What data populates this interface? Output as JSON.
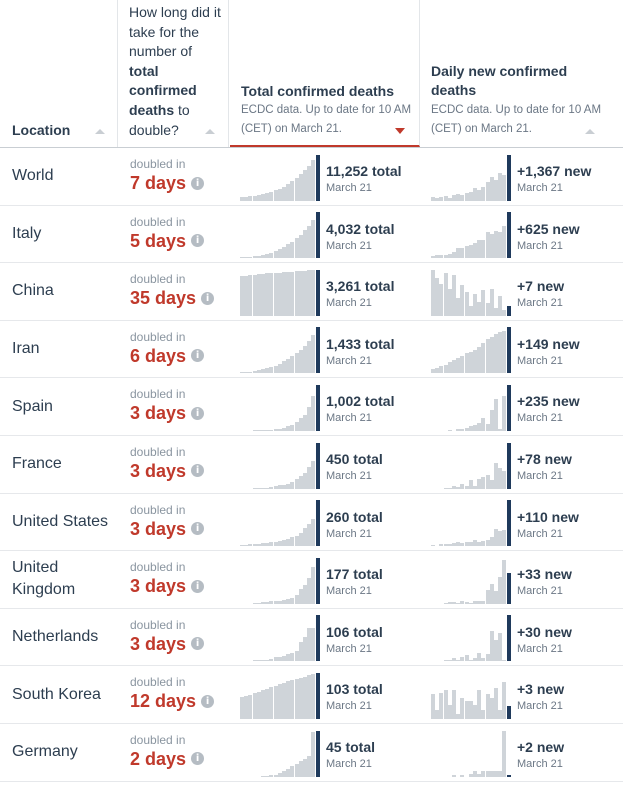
{
  "header": {
    "location": "Location",
    "doubling_q": {
      "pre": "How long did it take for the number of ",
      "bold": "total confirmed deaths",
      "post": " to double?"
    },
    "total": {
      "title": "Total confirmed deaths",
      "sub": "ECDC data. Up to date for 10 AM (CET) on March 21."
    },
    "daily": {
      "title": "Daily new confirmed deaths",
      "sub": "ECDC data. Up to date for 10 AM (CET) on March 21."
    }
  },
  "doubled_label": "doubled in",
  "info_glyph": "i",
  "date_label": "March 21",
  "rows": [
    {
      "location": "World",
      "days": "7 days",
      "total": "11,252 total",
      "daily": "+1,367 new",
      "total_series": [
        0.07,
        0.08,
        0.09,
        0.1,
        0.12,
        0.14,
        0.16,
        0.19,
        0.22,
        0.26,
        0.3,
        0.36,
        0.42,
        0.49,
        0.57,
        0.66,
        0.75,
        0.88,
        1.0
      ],
      "daily_series": [
        0.07,
        0.05,
        0.08,
        0.1,
        0.06,
        0.12,
        0.15,
        0.12,
        0.16,
        0.18,
        0.28,
        0.22,
        0.3,
        0.4,
        0.52,
        0.45,
        0.6,
        0.55,
        1.0
      ]
    },
    {
      "location": "Italy",
      "days": "5 days",
      "total": "4,032 total",
      "daily": "+625 new",
      "total_series": [
        0.01,
        0.02,
        0.03,
        0.04,
        0.05,
        0.07,
        0.09,
        0.12,
        0.15,
        0.19,
        0.25,
        0.31,
        0.36,
        0.44,
        0.51,
        0.61,
        0.7,
        0.84,
        1.0
      ],
      "daily_series": [
        0.04,
        0.06,
        0.07,
        0.08,
        0.1,
        0.13,
        0.22,
        0.22,
        0.26,
        0.28,
        0.32,
        0.4,
        0.4,
        0.56,
        0.52,
        0.59,
        0.56,
        0.7,
        1.0
      ]
    },
    {
      "location": "China",
      "days": "35 days",
      "total": "3,261 total",
      "daily": "+7 new",
      "total_series": [
        0.86,
        0.87,
        0.88,
        0.89,
        0.9,
        0.91,
        0.92,
        0.93,
        0.94,
        0.94,
        0.95,
        0.96,
        0.96,
        0.97,
        0.98,
        0.98,
        0.99,
        0.99,
        1.0
      ],
      "daily_series": [
        1.0,
        0.82,
        0.7,
        0.92,
        0.58,
        0.88,
        0.38,
        0.66,
        0.52,
        0.22,
        0.48,
        0.3,
        0.55,
        0.28,
        0.58,
        0.18,
        0.42,
        0.12,
        0.22
      ]
    },
    {
      "location": "Iran",
      "days": "6 days",
      "total": "1,433 total",
      "daily": "+149 new",
      "total_series": [
        0.02,
        0.03,
        0.04,
        0.05,
        0.07,
        0.09,
        0.11,
        0.14,
        0.17,
        0.21,
        0.26,
        0.31,
        0.37,
        0.44,
        0.51,
        0.6,
        0.7,
        0.84,
        1.0
      ],
      "daily_series": [
        0.1,
        0.12,
        0.15,
        0.18,
        0.24,
        0.3,
        0.34,
        0.38,
        0.44,
        0.46,
        0.5,
        0.58,
        0.66,
        0.74,
        0.8,
        0.86,
        0.9,
        0.92,
        1.0
      ]
    },
    {
      "location": "Spain",
      "days": "3 days",
      "total": "1,002 total",
      "daily": "+235 new",
      "total_series": [
        0.0,
        0.0,
        0.0,
        0.01,
        0.01,
        0.01,
        0.02,
        0.03,
        0.04,
        0.05,
        0.07,
        0.1,
        0.14,
        0.2,
        0.29,
        0.34,
        0.53,
        0.77,
        1.0
      ],
      "daily_series": [
        0.0,
        0.0,
        0.0,
        0.0,
        0.02,
        0.0,
        0.04,
        0.04,
        0.06,
        0.1,
        0.14,
        0.18,
        0.28,
        0.16,
        0.45,
        0.7,
        0.04,
        0.75,
        1.0
      ]
    },
    {
      "location": "France",
      "days": "3 days",
      "total": "450 total",
      "daily": "+78 new",
      "total_series": [
        0.0,
        0.0,
        0.0,
        0.01,
        0.01,
        0.02,
        0.02,
        0.04,
        0.05,
        0.07,
        0.07,
        0.11,
        0.14,
        0.2,
        0.28,
        0.33,
        0.47,
        0.59,
        1.0
      ],
      "daily_series": [
        0.0,
        0.0,
        0.0,
        0.02,
        0.02,
        0.05,
        0.03,
        0.1,
        0.05,
        0.18,
        0.05,
        0.2,
        0.25,
        0.3,
        0.18,
        0.56,
        0.45,
        0.38,
        1.0
      ]
    },
    {
      "location": "United States",
      "days": "3 days",
      "total": "260 total",
      "daily": "+110 new",
      "total_series": [
        0.03,
        0.03,
        0.04,
        0.04,
        0.05,
        0.06,
        0.07,
        0.08,
        0.09,
        0.11,
        0.14,
        0.16,
        0.19,
        0.23,
        0.29,
        0.39,
        0.48,
        0.58,
        1.0
      ],
      "daily_series": [
        0.02,
        0.0,
        0.04,
        0.04,
        0.05,
        0.06,
        0.08,
        0.06,
        0.08,
        0.1,
        0.14,
        0.08,
        0.12,
        0.14,
        0.2,
        0.38,
        0.32,
        0.36,
        1.0
      ]
    },
    {
      "location": "United Kingdom",
      "days": "3 days",
      "total": "177 total",
      "daily": "+33 new",
      "total_series": [
        0.0,
        0.0,
        0.0,
        0.01,
        0.02,
        0.03,
        0.03,
        0.05,
        0.06,
        0.06,
        0.08,
        0.1,
        0.12,
        0.2,
        0.32,
        0.4,
        0.57,
        0.81,
        1.0
      ],
      "daily_series": [
        0.0,
        0.0,
        0.0,
        0.02,
        0.03,
        0.04,
        0.02,
        0.06,
        0.04,
        0.02,
        0.06,
        0.06,
        0.06,
        0.3,
        0.44,
        0.28,
        0.58,
        0.96,
        0.66
      ]
    },
    {
      "location": "Netherlands",
      "days": "3 days",
      "total": "106 total",
      "daily": "+30 new",
      "total_series": [
        0.0,
        0.0,
        0.0,
        0.01,
        0.01,
        0.03,
        0.04,
        0.06,
        0.09,
        0.1,
        0.12,
        0.17,
        0.19,
        0.23,
        0.41,
        0.54,
        0.72,
        0.72,
        1.0
      ],
      "daily_series": [
        0.0,
        0.0,
        0.0,
        0.02,
        0.02,
        0.08,
        0.04,
        0.1,
        0.14,
        0.04,
        0.08,
        0.18,
        0.08,
        0.16,
        0.66,
        0.46,
        0.62,
        0.04,
        1.0
      ]
    },
    {
      "location": "South Korea",
      "days": "12 days",
      "total": "103 total",
      "daily": "+3 new",
      "total_series": [
        0.47,
        0.5,
        0.53,
        0.56,
        0.59,
        0.63,
        0.66,
        0.69,
        0.72,
        0.75,
        0.78,
        0.82,
        0.85,
        0.87,
        0.9,
        0.92,
        0.95,
        0.97,
        1.0
      ],
      "daily_series": [
        0.55,
        0.2,
        0.56,
        0.62,
        0.3,
        0.62,
        0.1,
        0.45,
        0.4,
        0.4,
        0.3,
        0.62,
        0.2,
        0.55,
        0.45,
        0.68,
        0.2,
        0.8,
        0.28
      ]
    },
    {
      "location": "Germany",
      "days": "2 days",
      "total": "45 total",
      "daily": "+2 new",
      "total_series": [
        0.0,
        0.0,
        0.0,
        0.0,
        0.0,
        0.02,
        0.02,
        0.04,
        0.04,
        0.07,
        0.13,
        0.16,
        0.22,
        0.27,
        0.33,
        0.38,
        0.44,
        0.96,
        1.0
      ],
      "daily_series": [
        0.0,
        0.0,
        0.0,
        0.0,
        0.0,
        0.04,
        0.0,
        0.04,
        0.0,
        0.06,
        0.12,
        0.06,
        0.12,
        0.12,
        0.12,
        0.12,
        0.12,
        1.0,
        0.04
      ]
    }
  ]
}
